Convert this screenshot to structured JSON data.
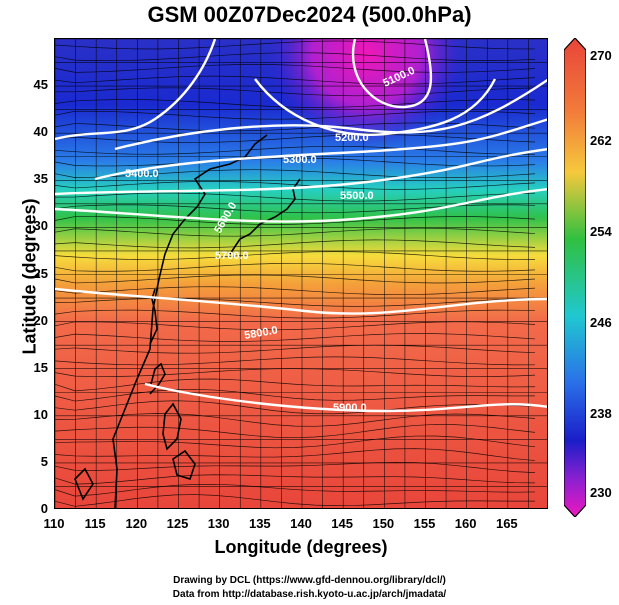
{
  "title": "GSM 00Z07Dec2024 (500.0hPa)",
  "axes": {
    "xlabel": "Longitude (degrees)",
    "ylabel": "Latitude  (degrees)",
    "xlim": [
      110,
      170
    ],
    "ylim": [
      0,
      50
    ],
    "xticks": [
      "110",
      "115",
      "120",
      "125",
      "130",
      "135",
      "140",
      "145",
      "150",
      "155",
      "160",
      "165"
    ],
    "yticks": [
      "0",
      "5",
      "10",
      "15",
      "20",
      "25",
      "30",
      "35",
      "40",
      "45"
    ]
  },
  "colorbar": {
    "min": 230,
    "max": 270,
    "labels": [
      "270",
      "262",
      "254",
      "246",
      "238",
      "230"
    ]
  },
  "contours": [
    {
      "label": "5100.0"
    },
    {
      "label": "5200.0"
    },
    {
      "label": "5300.0"
    },
    {
      "label": "5400.0"
    },
    {
      "label": "5500.0"
    },
    {
      "label": "5600.0"
    },
    {
      "label": "5700.0"
    },
    {
      "label": "5800.0"
    },
    {
      "label": "5900.0"
    }
  ],
  "credits": {
    "line1": "Drawing by DCL (https://www.gfd-dennou.org/library/dcl/)",
    "line2": "Data from http://database.rish.kyoto-u.ac.jp/arch/jmadata/"
  },
  "colors": {
    "warm": "#f0503c",
    "mid": "#f8e04a",
    "green": "#28c03c",
    "cold": "#1a2cd8",
    "coldest": "#e020c0",
    "contour": "#ffffff"
  }
}
